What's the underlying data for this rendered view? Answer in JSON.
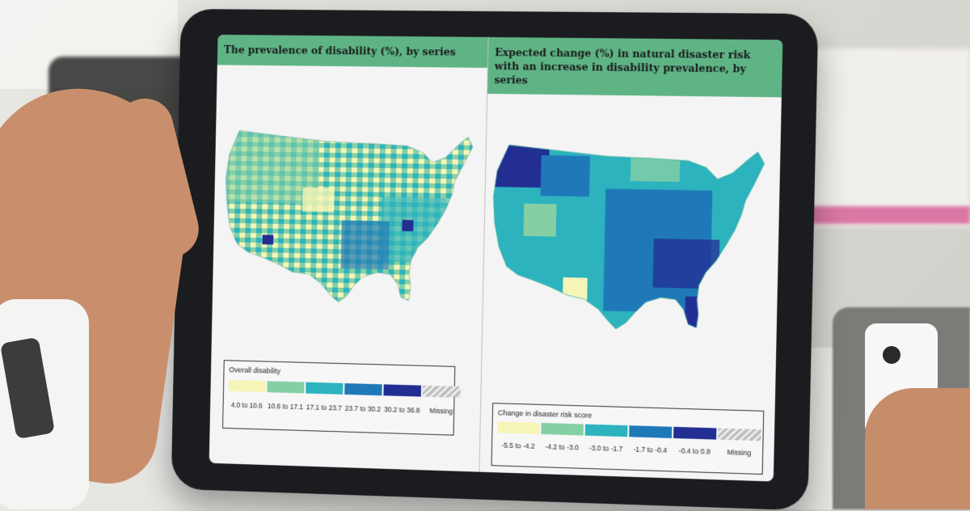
{
  "left_panel": {
    "title": "The prevalence of disability (%), by series",
    "legend": {
      "title": "Overall disability",
      "items": [
        {
          "label": "4.0 to 10.6",
          "color": "#f6f5b8"
        },
        {
          "label": "10.6 to 17.1",
          "color": "#86cfa5"
        },
        {
          "label": "17.1 to 23.7",
          "color": "#2cb3be"
        },
        {
          "label": "23.7 to 30.2",
          "color": "#1f79b8"
        },
        {
          "label": "30.2 to 36.8",
          "color": "#232e93"
        },
        {
          "label": "Missing",
          "color": "hatched-gray"
        }
      ]
    }
  },
  "right_panel": {
    "title": "Expected change (%) in natural disaster risk with an increase in disability prevalence, by series",
    "legend": {
      "title": "Change in disaster risk score",
      "items": [
        {
          "label": "-5.5 to -4.2",
          "color": "#f6f5b8"
        },
        {
          "label": "-4.2 to -3.0",
          "color": "#86cfa5"
        },
        {
          "label": "-3.0 to -1.7",
          "color": "#2cb3be"
        },
        {
          "label": "-1.7 to -0.4",
          "color": "#1f79b8"
        },
        {
          "label": "-0.4 to 0.8",
          "color": "#232e93"
        },
        {
          "label": "Missing",
          "color": "hatched-gray"
        }
      ]
    }
  }
}
